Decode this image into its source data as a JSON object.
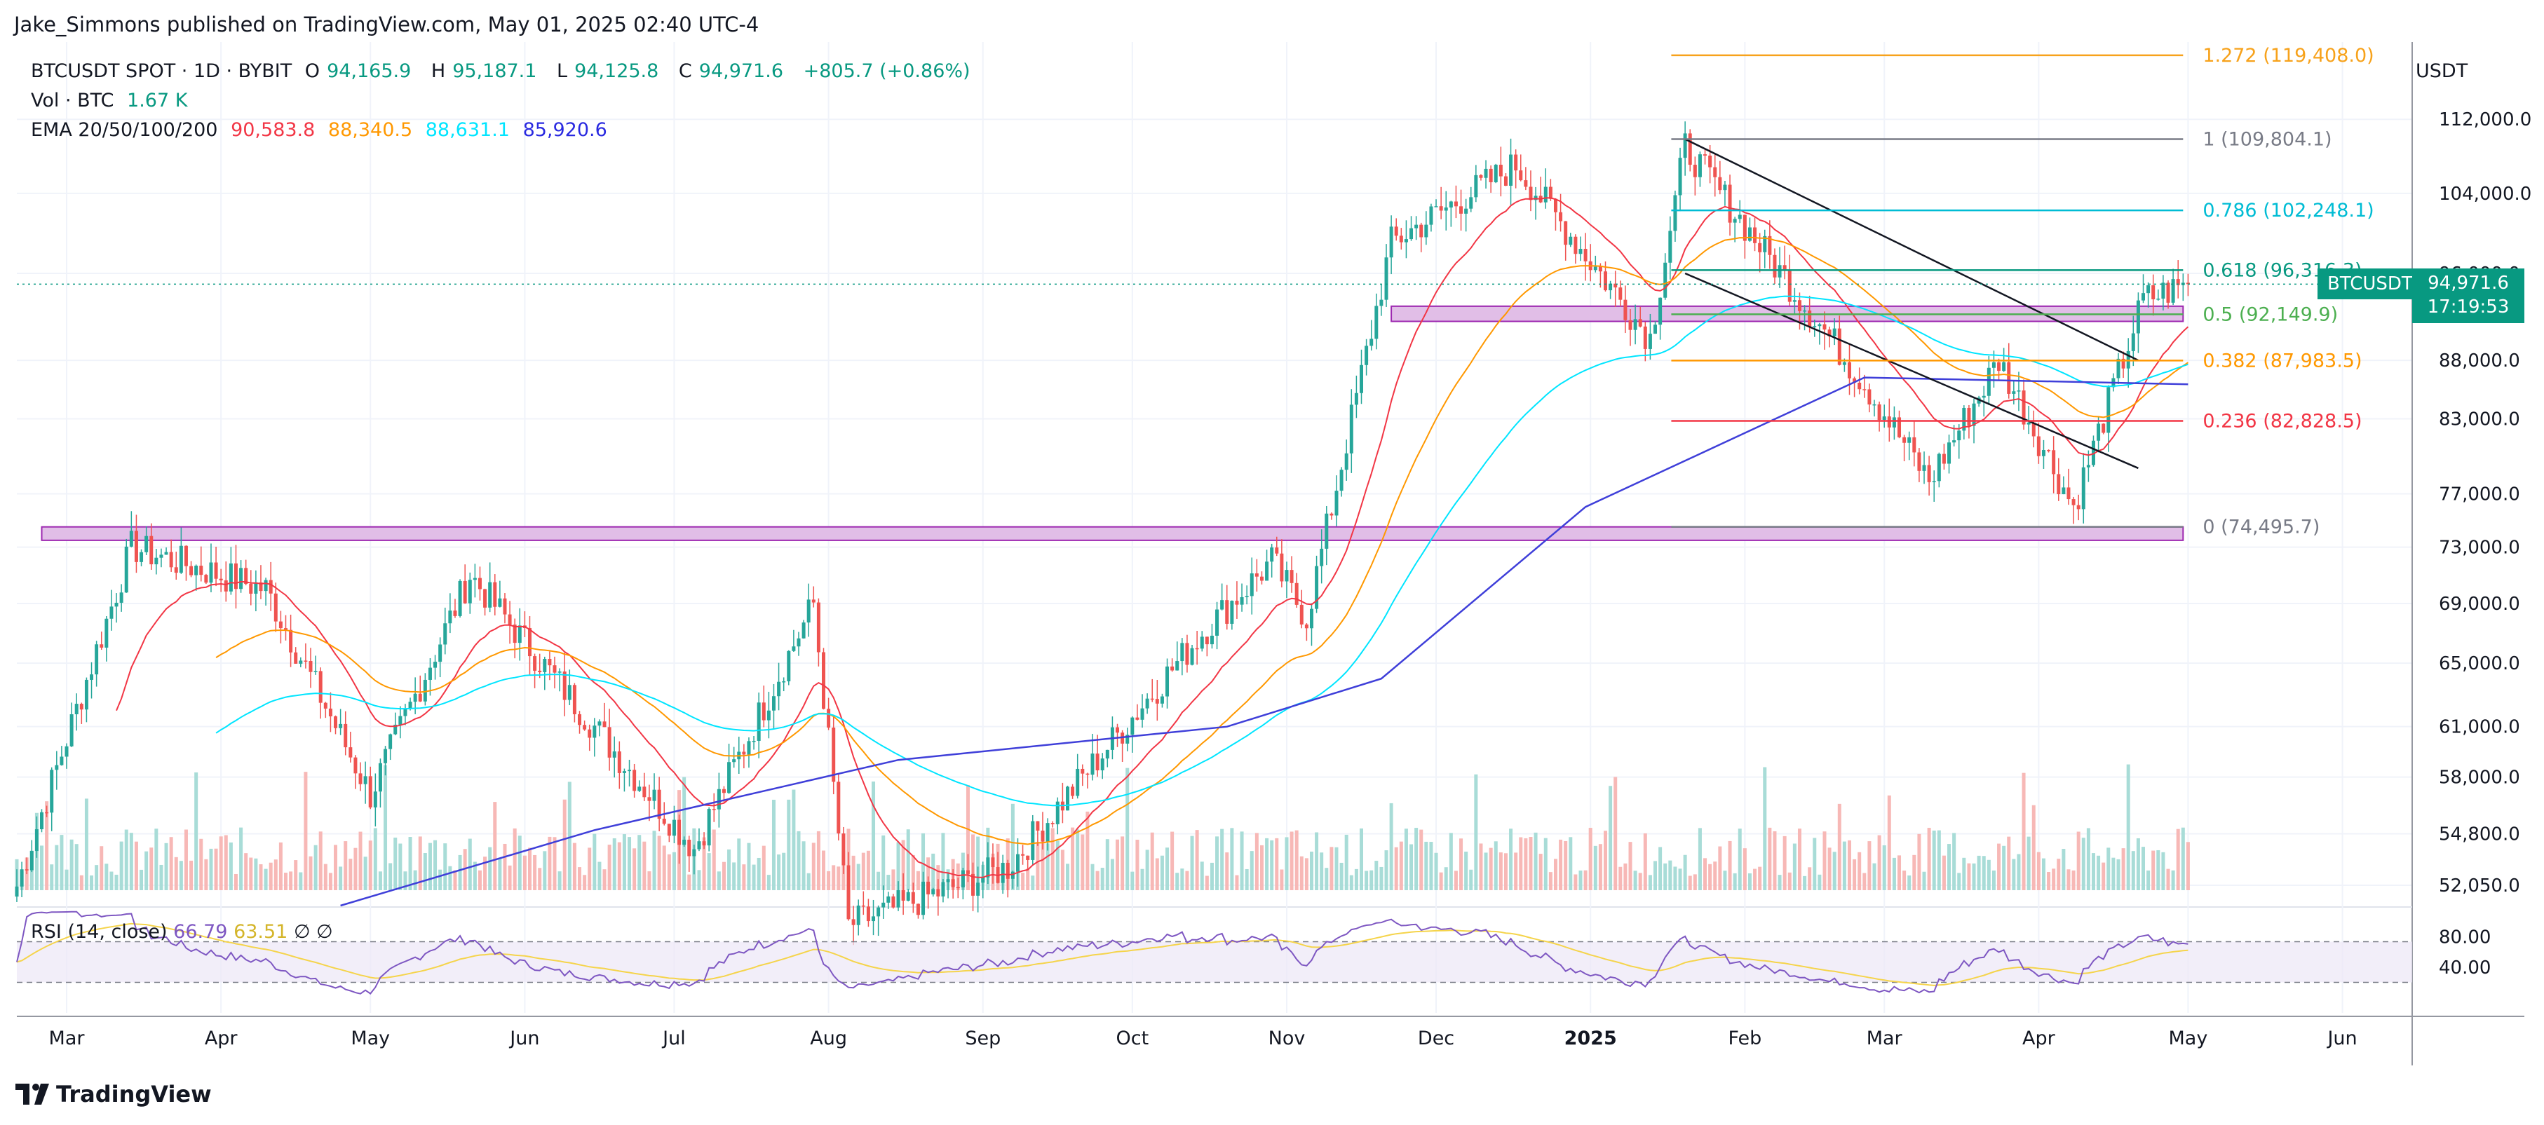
{
  "publisher": "Jake_Simmons published on TradingView.com, May 01, 2025 02:40 UTC-4",
  "legend": {
    "symbol": "BTCUSDT SPOT · 1D · BYBIT",
    "open_label": "O",
    "open": "94,165.9",
    "high_label": "H",
    "high": "95,187.1",
    "low_label": "L",
    "low": "94,125.8",
    "close_label": "C",
    "close": "94,971.6",
    "change": "+805.7 (+0.86%)",
    "vol_label": "Vol · BTC",
    "vol_value": "1.67 K",
    "ema_label": "EMA 20/50/100/200",
    "ema_values": [
      "90,583.8",
      "88,340.5",
      "88,631.1",
      "85,920.6"
    ]
  },
  "rsi_legend": {
    "label": "RSI (14, close)",
    "value": "66.79",
    "ma_value": "63.51",
    "extra1": "∅",
    "extra2": "∅"
  },
  "price_axis": {
    "currency": "USDT",
    "ticks": [
      "112,000.0",
      "104,000.0",
      "96,000.0",
      "88,000.0",
      "83,000.0",
      "77,000.0",
      "73,000.0",
      "69,000.0",
      "65,000.0",
      "61,000.0",
      "58,000.0",
      "54,800.0",
      "52,050.0"
    ],
    "rsi_ticks": [
      "80.00",
      "40.00"
    ]
  },
  "price_tag": {
    "symbol": "BTCUSDT",
    "price": "94,971.6",
    "countdown": "17:19:53"
  },
  "time_axis": [
    "Mar",
    "Apr",
    "May",
    "Jun",
    "Jul",
    "Aug",
    "Sep",
    "Oct",
    "Nov",
    "Dec",
    "2025",
    "Feb",
    "Mar",
    "Apr",
    "May",
    "Jun"
  ],
  "fib_levels": [
    {
      "label": "1.272 (119,408.0)",
      "color": "#f7a21b",
      "price": 119408.0
    },
    {
      "label": "1 (109,804.1)",
      "color": "#787b86",
      "price": 109804.1
    },
    {
      "label": "0.786 (102,248.1)",
      "color": "#00bcd4",
      "price": 102248.1
    },
    {
      "label": "0.618 (96,316.3)",
      "color": "#089981",
      "price": 96316.3
    },
    {
      "label": "0.5 (92,149.9)",
      "color": "#4caf50",
      "price": 92149.9
    },
    {
      "label": "0.382 (87,983.5)",
      "color": "#ff9800",
      "price": 87983.5
    },
    {
      "label": "0.236 (82,828.5)",
      "color": "#f23645",
      "price": 82828.5
    },
    {
      "label": "0 (74,495.7)",
      "color": "#787b86",
      "price": 74495.7
    }
  ],
  "logo_text": "TradingView",
  "colors": {
    "up": "#26a69a",
    "down": "#ef5350",
    "ema20": "#f23645",
    "ema50": "#ff9800",
    "ema100": "#00e5ff",
    "ema200": "#3f3fd9",
    "rsi": "#7e57c2",
    "rsi_ma": "#f5d44b",
    "zone": "#e1bee7"
  },
  "chart_data": {
    "type": "candlestick",
    "title": "BTCUSDT SPOT · 1D · BYBIT",
    "ylabel": "USDT",
    "x_range": [
      "2024-02-20",
      "2025-06-15"
    ],
    "ylim_log": [
      51000,
      121000
    ],
    "key_points": [
      {
        "date": "2024-02-20",
        "price": 52000
      },
      {
        "date": "2024-03-14",
        "price": 73000
      },
      {
        "date": "2024-04-10",
        "price": 70000
      },
      {
        "date": "2024-05-01",
        "price": 57000
      },
      {
        "date": "2024-05-21",
        "price": 71000
      },
      {
        "date": "2024-07-05",
        "price": 54000
      },
      {
        "date": "2024-07-29",
        "price": 69000
      },
      {
        "date": "2024-08-05",
        "price": 50000
      },
      {
        "date": "2024-09-06",
        "price": 53000
      },
      {
        "date": "2024-10-15",
        "price": 67000
      },
      {
        "date": "2024-10-29",
        "price": 72000
      },
      {
        "date": "2024-11-05",
        "price": 68000
      },
      {
        "date": "2024-11-22",
        "price": 99000
      },
      {
        "date": "2024-12-17",
        "price": 107000
      },
      {
        "date": "2025-01-13",
        "price": 90000
      },
      {
        "date": "2025-01-20",
        "price": 109000
      },
      {
        "date": "2025-02-25",
        "price": 86000
      },
      {
        "date": "2025-03-10",
        "price": 78000
      },
      {
        "date": "2025-03-24",
        "price": 88000
      },
      {
        "date": "2025-04-08",
        "price": 76000
      },
      {
        "date": "2025-04-22",
        "price": 93500
      },
      {
        "date": "2025-05-01",
        "price": 94971.6
      }
    ],
    "ema200_points": [
      {
        "date": "2024-04-25",
        "price": 51000
      },
      {
        "date": "2024-06-15",
        "price": 55000
      },
      {
        "date": "2024-08-15",
        "price": 59000
      },
      {
        "date": "2024-10-20",
        "price": 61000
      },
      {
        "date": "2024-11-20",
        "price": 64000
      },
      {
        "date": "2024-12-31",
        "price": 76000
      },
      {
        "date": "2025-02-25",
        "price": 86500
      },
      {
        "date": "2025-05-01",
        "price": 85920.6
      }
    ],
    "rsi": {
      "range": [
        0,
        100
      ],
      "bands": [
        30,
        70
      ],
      "last": 66.79,
      "ma_last": 63.51
    },
    "support_zones": [
      {
        "low": 73500,
        "high": 74495.7,
        "from": "2024-02-25",
        "to": "2025-04-30"
      },
      {
        "low": 91500,
        "high": 92900,
        "from": "2024-11-22",
        "to": "2025-04-30"
      }
    ],
    "trend_channel": {
      "upper": [
        {
          "date": "2025-01-20",
          "price": 109800
        },
        {
          "date": "2025-04-21",
          "price": 88000
        }
      ],
      "lower": [
        {
          "date": "2025-01-20",
          "price": 96000
        },
        {
          "date": "2025-04-21",
          "price": 79000
        }
      ]
    }
  }
}
